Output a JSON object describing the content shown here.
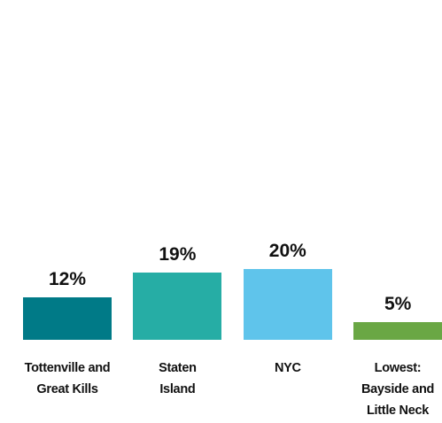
{
  "chart_data": {
    "type": "bar",
    "categories": [
      "Tottenville and Great Kills",
      "Staten Island",
      "NYC",
      "Lowest: Bayside and Little Neck"
    ],
    "values": [
      12,
      19,
      20,
      5
    ],
    "value_labels": [
      "12%",
      "19%",
      "20%",
      "5%"
    ],
    "colors": [
      "#007a87",
      "#26ada5",
      "#5fc4eb",
      "#6aa744"
    ]
  }
}
